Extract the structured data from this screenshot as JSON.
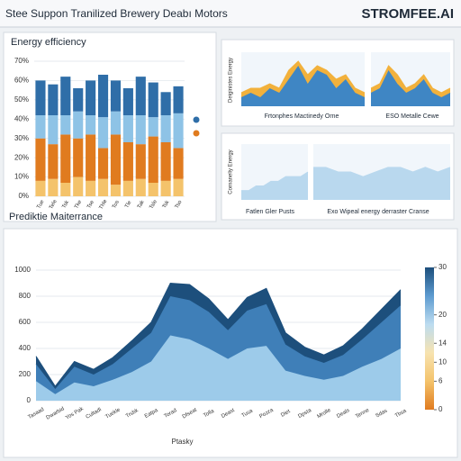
{
  "header": {
    "title": "Stee Suppon Tranilized Brewery Deabı Motors",
    "brand": "STROMFEE.AI"
  },
  "chart_data": [
    {
      "type": "bar",
      "title": "Energy efficiency",
      "categories": [
        "Tue",
        "Tele",
        "Tsk",
        "Tke",
        "Tse",
        "Thle",
        "Tos",
        "Tle",
        "Tak",
        "Tsle",
        "Tsk",
        "Tso"
      ],
      "series": [
        {
          "color": "#f4c36b",
          "values": [
            8,
            9,
            7,
            10,
            8,
            9,
            6,
            8,
            9,
            7,
            8,
            9
          ]
        },
        {
          "color": "#e07b1f",
          "values": [
            22,
            18,
            25,
            20,
            24,
            16,
            26,
            20,
            18,
            24,
            20,
            16
          ]
        },
        {
          "color": "#8ec3e6",
          "values": [
            12,
            15,
            10,
            14,
            10,
            16,
            12,
            14,
            15,
            10,
            14,
            18
          ]
        },
        {
          "color": "#2f6ea8",
          "values": [
            18,
            16,
            20,
            12,
            18,
            22,
            16,
            14,
            20,
            18,
            12,
            14
          ]
        }
      ],
      "ylim": [
        0,
        70
      ],
      "yticks": [
        {
          "value": 0,
          "label": "0%"
        },
        {
          "value": 10,
          "label": "10%"
        },
        {
          "value": 20,
          "label": "20%"
        },
        {
          "value": 30,
          "label": "30%"
        },
        {
          "value": 40,
          "label": "40%"
        },
        {
          "value": 50,
          "label": "50%"
        },
        {
          "value": 60,
          "label": "60%"
        },
        {
          "value": 70,
          "label": "70%"
        }
      ],
      "grid": true
    },
    {
      "type": "area",
      "title": "Frtonphes Mactinedy Orne",
      "ylabel": "Deiginistes Energy",
      "series": [
        {
          "color": "#3f86c4",
          "values": [
            2,
            3,
            2,
            4,
            3,
            6,
            9,
            5,
            8,
            7,
            4,
            6,
            3,
            2
          ]
        },
        {
          "color": "#f2b13c",
          "values": [
            1,
            1,
            2,
            1,
            1,
            2,
            1,
            2,
            1,
            1,
            2,
            1,
            1,
            1
          ]
        }
      ],
      "ylim": [
        0,
        12
      ]
    },
    {
      "type": "area",
      "title": "ESO Metalle Cewe",
      "series": [
        {
          "color": "#3f86c4",
          "values": [
            3,
            4,
            8,
            5,
            3,
            4,
            6,
            3,
            2,
            3
          ]
        },
        {
          "color": "#f2b13c",
          "values": [
            1,
            1,
            1,
            2,
            1,
            1,
            1,
            1,
            1,
            1
          ]
        }
      ],
      "ylim": [
        0,
        12
      ]
    },
    {
      "type": "area",
      "title": "Fatlen Gler Pusts",
      "ylabel": "Cornaneliy Energy",
      "series": [
        {
          "color": "#b9d8ee",
          "values": [
            2,
            2,
            3,
            3,
            4,
            4,
            5,
            5,
            5,
            6
          ]
        }
      ],
      "ylim": [
        0,
        12
      ]
    },
    {
      "type": "area",
      "title": "Exo Wipeal energy derraster Cranse",
      "series": [
        {
          "color": "#b9d8ee",
          "values": [
            7,
            7,
            6,
            6,
            5,
            6,
            7,
            7,
            6,
            7,
            6,
            7
          ]
        }
      ],
      "ylim": [
        0,
        12
      ]
    },
    {
      "type": "area",
      "title": "Prediktie Maiterrance",
      "xlabel": "Ptasky",
      "categories": [
        "Tasaad",
        "Dwarbid",
        "Yos Pak",
        "Cultadi",
        "Tuekle",
        "Trsbk",
        "Eatpa",
        "Torad",
        "Dfseat",
        "Tolla",
        "Deast",
        "Tusa",
        "Pozza",
        "Diet",
        "Dpsta",
        "Mrolle",
        "Deals",
        "Tenne",
        "Sdas",
        "Tbsa"
      ],
      "series": [
        {
          "color": "#9dcbea",
          "values": [
            150,
            50,
            140,
            110,
            160,
            220,
            300,
            500,
            470,
            400,
            320,
            400,
            420,
            230,
            190,
            160,
            190,
            260,
            320,
            400
          ]
        },
        {
          "color": "#3f7fb8",
          "values": [
            130,
            40,
            120,
            90,
            120,
            180,
            220,
            300,
            300,
            280,
            220,
            290,
            320,
            200,
            150,
            130,
            160,
            210,
            280,
            330
          ]
        },
        {
          "color": "#1d4f7c",
          "values": [
            60,
            20,
            40,
            40,
            50,
            60,
            80,
            100,
            120,
            100,
            80,
            100,
            120,
            90,
            70,
            60,
            70,
            80,
            100,
            120
          ]
        }
      ],
      "ylim": [
        0,
        1000
      ],
      "yticks": [
        0,
        200,
        400,
        600,
        800,
        1000
      ],
      "grid": true
    }
  ],
  "colorbar": {
    "ylim": [
      0,
      30
    ],
    "yticks": [
      0,
      6,
      10,
      14,
      20,
      30
    ],
    "colors": [
      "#e07b1f",
      "#f4c36b",
      "#f7e3b0",
      "#bcdcf0",
      "#5d9bd0",
      "#1d4f7c"
    ]
  }
}
